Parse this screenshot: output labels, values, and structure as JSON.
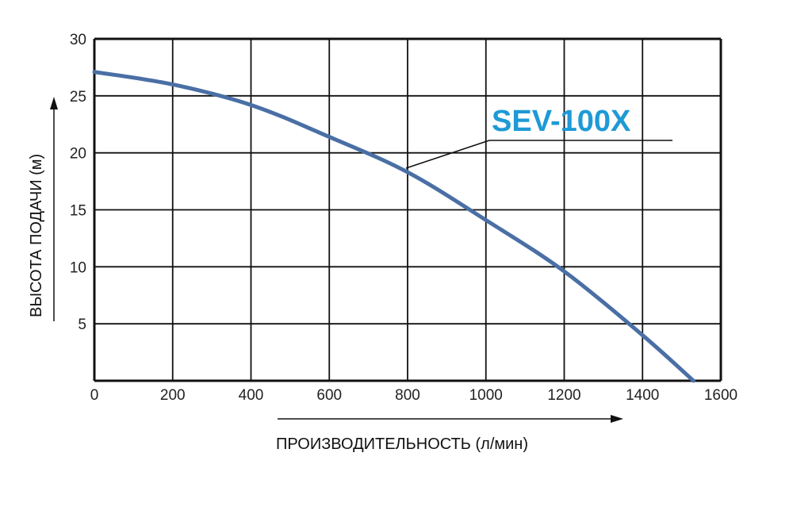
{
  "chart_data": {
    "type": "line",
    "xlabel": "ПРОИЗВОДИТЕЛЬНОСТЬ (л/мин)",
    "ylabel": "ВЫСОТА ПОДАЧИ (м)",
    "xlim": [
      0,
      1600
    ],
    "ylim": [
      0,
      30
    ],
    "xticks": [
      "0",
      "200",
      "400",
      "600",
      "800",
      "1000",
      "1200",
      "1400",
      "1600"
    ],
    "yticks": [
      "5",
      "10",
      "15",
      "20",
      "25",
      "30"
    ],
    "grid": true,
    "series": [
      {
        "name": "SEV-100X",
        "color": "#4a6fa5",
        "x": [
          0,
          200,
          400,
          600,
          800,
          1000,
          1200,
          1400,
          1530
        ],
        "y": [
          27.1,
          26.0,
          24.2,
          21.4,
          18.3,
          14.1,
          9.6,
          4.0,
          0
        ]
      }
    ],
    "annotation_color": "#1e9ad6"
  }
}
